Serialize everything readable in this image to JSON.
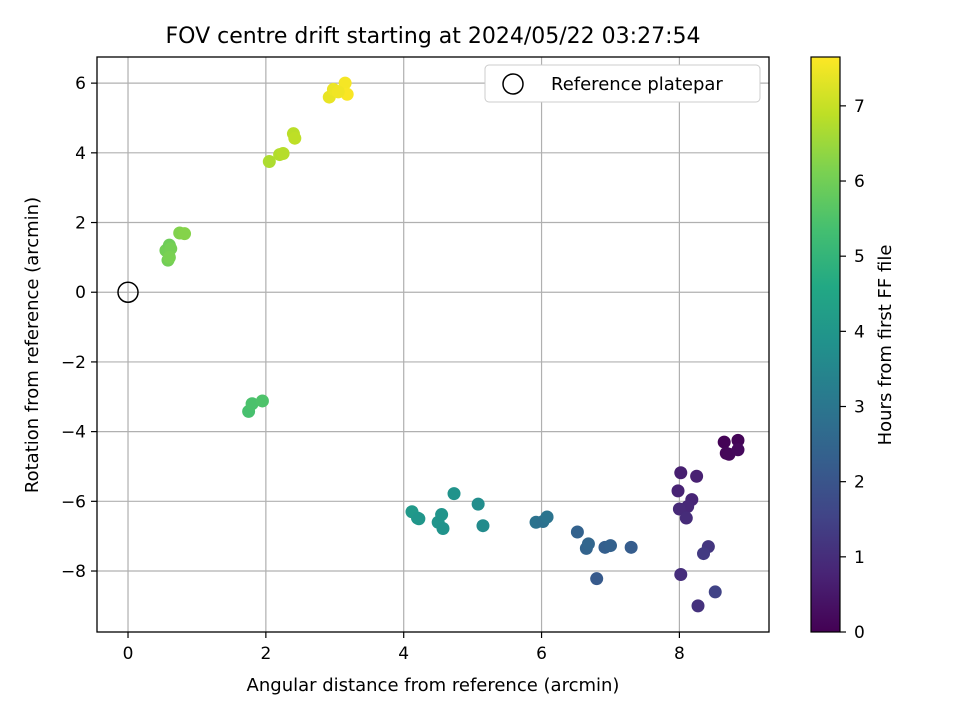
{
  "chart_data": {
    "type": "scatter",
    "title": "FOV centre drift starting at 2024/05/22 03:27:54",
    "xlabel": "Angular distance from reference (arcmin)",
    "ylabel": "Rotation from reference (arcmin)",
    "xlim": [
      -0.45,
      9.3
    ],
    "ylim": [
      -9.75,
      6.75
    ],
    "x_ticks": [
      0,
      2,
      4,
      6,
      8
    ],
    "y_ticks": [
      -8,
      -6,
      -4,
      -2,
      0,
      2,
      4,
      6
    ],
    "grid": true,
    "legend": {
      "position": "top-right",
      "entries": [
        "Reference platepar"
      ]
    },
    "reference_point": {
      "label": "Reference platepar",
      "x": 0,
      "y": 0
    },
    "colorbar": {
      "label": "Hours from first FF file",
      "colormap": "viridis",
      "range": [
        0,
        7.65
      ],
      "ticks": [
        0,
        1,
        2,
        3,
        4,
        5,
        6,
        7
      ]
    },
    "points": [
      {
        "x": 8.65,
        "y": -4.3,
        "t": 0.05
      },
      {
        "x": 8.85,
        "y": -4.25,
        "t": 0.08
      },
      {
        "x": 8.68,
        "y": -4.62,
        "t": 0.12
      },
      {
        "x": 8.72,
        "y": -4.65,
        "t": 0.15
      },
      {
        "x": 8.85,
        "y": -4.52,
        "t": 0.18
      },
      {
        "x": 8.02,
        "y": -5.18,
        "t": 0.65
      },
      {
        "x": 8.25,
        "y": -5.28,
        "t": 0.7
      },
      {
        "x": 7.98,
        "y": -5.7,
        "t": 0.75
      },
      {
        "x": 8.18,
        "y": -5.95,
        "t": 0.8
      },
      {
        "x": 8.12,
        "y": -6.15,
        "t": 0.85
      },
      {
        "x": 8.0,
        "y": -6.22,
        "t": 0.9
      },
      {
        "x": 8.1,
        "y": -6.48,
        "t": 0.95
      },
      {
        "x": 8.02,
        "y": -8.1,
        "t": 1.0
      },
      {
        "x": 8.42,
        "y": -7.3,
        "t": 1.2
      },
      {
        "x": 8.35,
        "y": -7.5,
        "t": 1.3
      },
      {
        "x": 8.52,
        "y": -8.6,
        "t": 1.5
      },
      {
        "x": 8.27,
        "y": -9.0,
        "t": 1.1
      },
      {
        "x": 6.8,
        "y": -8.22,
        "t": 2.15
      },
      {
        "x": 6.52,
        "y": -6.88,
        "t": 2.4
      },
      {
        "x": 6.65,
        "y": -7.35,
        "t": 2.45
      },
      {
        "x": 6.68,
        "y": -7.22,
        "t": 2.5
      },
      {
        "x": 6.92,
        "y": -7.32,
        "t": 2.3
      },
      {
        "x": 7.0,
        "y": -7.27,
        "t": 2.35
      },
      {
        "x": 7.3,
        "y": -7.32,
        "t": 2.25
      },
      {
        "x": 5.92,
        "y": -6.6,
        "t": 2.9
      },
      {
        "x": 6.02,
        "y": -6.58,
        "t": 2.85
      },
      {
        "x": 6.08,
        "y": -6.45,
        "t": 2.95
      },
      {
        "x": 5.08,
        "y": -6.08,
        "t": 3.7
      },
      {
        "x": 5.15,
        "y": -6.7,
        "t": 3.65
      },
      {
        "x": 4.73,
        "y": -5.78,
        "t": 3.9
      },
      {
        "x": 4.12,
        "y": -6.3,
        "t": 4.1
      },
      {
        "x": 4.2,
        "y": -6.48,
        "t": 4.05
      },
      {
        "x": 4.22,
        "y": -6.5,
        "t": 4.0
      },
      {
        "x": 4.5,
        "y": -6.6,
        "t": 3.95
      },
      {
        "x": 4.55,
        "y": -6.38,
        "t": 3.92
      },
      {
        "x": 4.57,
        "y": -6.78,
        "t": 3.88
      },
      {
        "x": 1.75,
        "y": -3.42,
        "t": 5.4
      },
      {
        "x": 1.8,
        "y": -3.2,
        "t": 5.45
      },
      {
        "x": 1.95,
        "y": -3.12,
        "t": 5.5
      },
      {
        "x": 0.55,
        "y": 1.2,
        "t": 6.0
      },
      {
        "x": 0.6,
        "y": 1.35,
        "t": 5.95
      },
      {
        "x": 0.62,
        "y": 1.25,
        "t": 6.05
      },
      {
        "x": 0.58,
        "y": 0.92,
        "t": 6.0
      },
      {
        "x": 0.6,
        "y": 1.0,
        "t": 6.1
      },
      {
        "x": 0.75,
        "y": 1.7,
        "t": 6.2
      },
      {
        "x": 0.82,
        "y": 1.68,
        "t": 6.25
      },
      {
        "x": 2.05,
        "y": 3.75,
        "t": 6.7
      },
      {
        "x": 2.2,
        "y": 3.95,
        "t": 6.75
      },
      {
        "x": 2.25,
        "y": 3.98,
        "t": 6.8
      },
      {
        "x": 2.4,
        "y": 4.55,
        "t": 6.85
      },
      {
        "x": 2.42,
        "y": 4.42,
        "t": 6.9
      },
      {
        "x": 2.92,
        "y": 5.6,
        "t": 7.4
      },
      {
        "x": 2.98,
        "y": 5.82,
        "t": 7.45
      },
      {
        "x": 3.1,
        "y": 5.78,
        "t": 7.5
      },
      {
        "x": 3.15,
        "y": 6.0,
        "t": 7.55
      },
      {
        "x": 3.18,
        "y": 5.68,
        "t": 7.6
      },
      {
        "x": 3.05,
        "y": 5.75,
        "t": 7.5
      }
    ]
  }
}
